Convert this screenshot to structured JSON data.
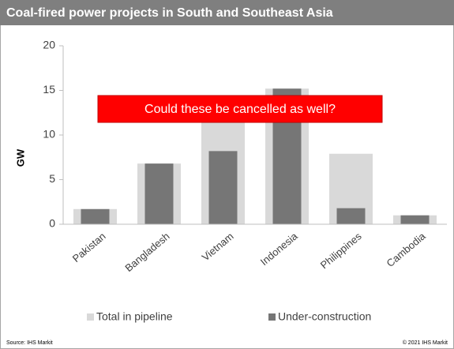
{
  "chart_data": {
    "type": "bar",
    "title": "Coal-fired power projects in South and Southeast Asia",
    "y_label": "GW",
    "categories": [
      "Pakistan",
      "Bangladesh",
      "Vietnam",
      "Indonesia",
      "Philippines",
      "Cambodia"
    ],
    "series": [
      {
        "name": "Total in pipeline",
        "color": "#d9d9d9",
        "values": [
          1.7,
          6.8,
          12,
          15.2,
          7.9,
          1.0
        ]
      },
      {
        "name": "Under-construction",
        "color": "#767676",
        "values": [
          1.7,
          6.8,
          8.2,
          15.2,
          1.8,
          1.0
        ]
      }
    ],
    "ylim": [
      0,
      20
    ],
    "yticks": [
      0,
      5,
      10,
      15,
      20
    ],
    "annotation": "Could these be cancelled as well?",
    "source": "Source: IHS Markit",
    "copyright": "© 2021 IHS Markit"
  }
}
